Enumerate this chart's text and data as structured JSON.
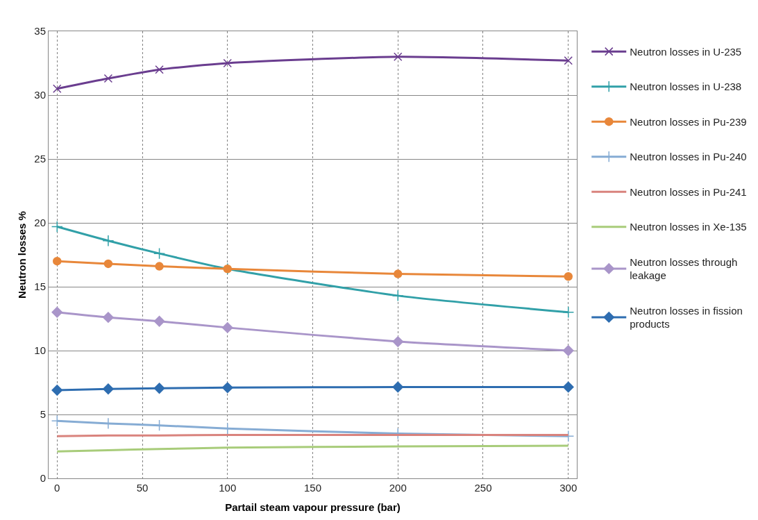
{
  "chart_data": {
    "type": "line",
    "xlabel": "Partail steam vapour pressure (bar)",
    "ylabel": "Neutron losses %",
    "x": [
      0,
      30,
      60,
      100,
      200,
      300
    ],
    "xlim": [
      -5,
      305
    ],
    "xticks": [
      0,
      50,
      100,
      150,
      200,
      250,
      300
    ],
    "ylim": [
      0,
      35
    ],
    "yticks": [
      0,
      5,
      10,
      15,
      20,
      25,
      30,
      35
    ],
    "grid": true,
    "legend": "right",
    "line_style": "solid",
    "series": [
      {
        "name": "Neutron losses in U-235",
        "color": "#6a3d8f",
        "marker": "x",
        "values": [
          30.5,
          31.3,
          32.0,
          32.5,
          33.0,
          32.7
        ]
      },
      {
        "name": "Neutron losses in U-238",
        "color": "#31a0a8",
        "marker": "cross",
        "values": [
          19.7,
          18.6,
          17.6,
          16.4,
          14.3,
          13.0
        ]
      },
      {
        "name": "Neutron losses in Pu-239",
        "color": "#e8873a",
        "marker": "circle",
        "values": [
          17.0,
          16.8,
          16.6,
          16.4,
          16.0,
          15.8
        ]
      },
      {
        "name": "Neutron losses in Pu-240",
        "color": "#86acd4",
        "marker": "cross",
        "values": [
          4.5,
          4.3,
          4.15,
          3.9,
          3.5,
          3.3
        ]
      },
      {
        "name": "Neutron losses in Pu-241",
        "color": "#d9837d",
        "marker": "none",
        "values": [
          3.3,
          3.35,
          3.35,
          3.4,
          3.4,
          3.4
        ]
      },
      {
        "name": "Neutron losses in Xe-135",
        "color": "#a8cc7a",
        "marker": "none",
        "values": [
          2.1,
          2.2,
          2.3,
          2.4,
          2.5,
          2.55
        ]
      },
      {
        "name": "Neutron losses through\nleakage",
        "color": "#a995c9",
        "marker": "diamond",
        "values": [
          13.0,
          12.6,
          12.3,
          11.8,
          10.7,
          10.0
        ]
      },
      {
        "name": "Neutron losses in fission\nproducts",
        "color": "#2e6db0",
        "marker": "diamond",
        "values": [
          6.9,
          7.0,
          7.05,
          7.1,
          7.15,
          7.15
        ]
      }
    ]
  }
}
